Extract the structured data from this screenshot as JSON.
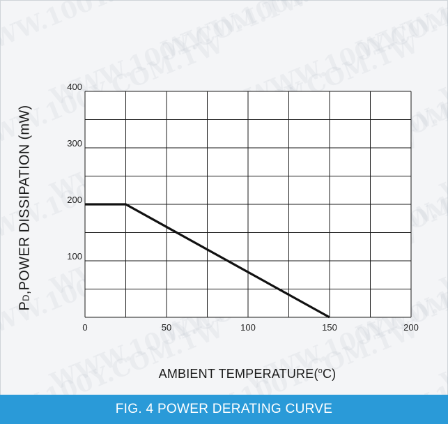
{
  "figure": {
    "caption": "FIG. 4 POWER DERATING CURVE",
    "watermark_text": "WWW.100Y.COM.TW"
  },
  "chart_data": {
    "type": "line",
    "title": "",
    "xlabel_main": "AMBIENT TEMPERATURE(",
    "xlabel_degree": "o",
    "xlabel_unit": "C)",
    "ylabel_prefix": "P",
    "ylabel_subscript": "D",
    "ylabel_rest": ",POWER DISSIPATION (mW)",
    "xlim": [
      0,
      200
    ],
    "ylim": [
      0,
      400
    ],
    "x_ticks": [
      0,
      50,
      100,
      150,
      200
    ],
    "x_tick_labels": [
      "0",
      "50",
      "100",
      "150",
      "200"
    ],
    "y_ticks": [
      100,
      200,
      300,
      400
    ],
    "y_tick_labels": [
      "100",
      "200",
      "300",
      "400"
    ],
    "x_grid_step": 25,
    "y_grid_step": 50,
    "grid": true,
    "series": [
      {
        "x": [
          0,
          25,
          150
        ],
        "y": [
          200,
          200,
          0
        ]
      }
    ],
    "colors": {
      "line": "#111111",
      "grid": "#1a1a1a"
    }
  }
}
